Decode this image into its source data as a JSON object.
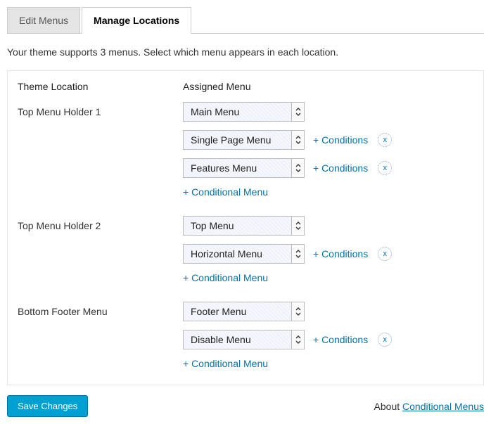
{
  "tabs": {
    "edit": "Edit Menus",
    "manage": "Manage Locations"
  },
  "description": "Your theme supports 3 menus. Select which menu appears in each location.",
  "headers": {
    "location": "Theme Location",
    "assigned": "Assigned Menu"
  },
  "locations": [
    {
      "label": "Top Menu Holder 1",
      "primary": "Main Menu",
      "conditionals": [
        "Single Page Menu",
        "Features Menu"
      ]
    },
    {
      "label": "Top Menu Holder 2",
      "primary": "Top Menu",
      "conditionals": [
        "Horizontal Menu"
      ]
    },
    {
      "label": "Bottom Footer Menu",
      "primary": "Footer Menu",
      "conditionals": [
        "Disable Menu"
      ]
    }
  ],
  "links": {
    "conditions": "+ Conditions",
    "conditional_menu": "+ Conditional Menu",
    "remove": "x"
  },
  "footer": {
    "save": "Save Changes",
    "about_prefix": "About ",
    "about_link": "Conditional Menus"
  },
  "colors": {
    "link": "#0073aa",
    "button_bg": "#00a0d2",
    "border": "#ccc"
  }
}
